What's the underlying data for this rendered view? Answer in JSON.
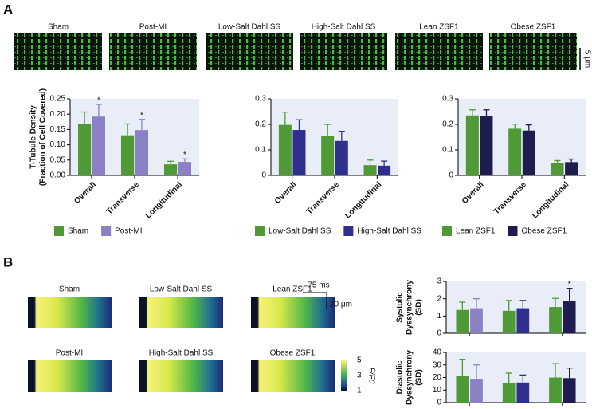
{
  "panel_labels": [
    "A",
    "B"
  ],
  "micrographs": [
    "Sham",
    "Post-MI",
    "Low-Salt Dahl SS",
    "High-Salt Dahl SS",
    "Lean ZSF1",
    "Obese ZSF1"
  ],
  "linescans": [
    "Sham",
    "Low-Salt Dahl SS",
    "Lean ZSF1",
    "Post-MI",
    "High-Salt Dahl SS",
    "Obese ZSF1"
  ],
  "scale_bars": {
    "micrograph": "5 μm",
    "time": "75 ms",
    "space": "20 μm"
  },
  "colorbar": {
    "label": "F/F0",
    "ticks": [
      5,
      3,
      1
    ]
  },
  "chart_data": [
    {
      "type": "bar",
      "ylabel": [
        "T-Tubule Density",
        "(Fraction of Cell Covered)"
      ],
      "categories": [
        "Overall",
        "Transverse",
        "Longitudinal"
      ],
      "series": [
        {
          "name": "Sham",
          "color": "#4f9a37",
          "values": [
            0.167,
            0.131,
            0.036
          ],
          "errors": [
            0.04,
            0.037,
            0.01
          ],
          "marks": [
            null,
            null,
            null
          ]
        },
        {
          "name": "Post-MI",
          "color": "#8b80c6",
          "values": [
            0.192,
            0.148,
            0.044
          ],
          "errors": [
            0.04,
            0.035,
            0.01
          ],
          "marks": [
            "*",
            "*",
            "*"
          ]
        }
      ],
      "ylim": [
        0,
        0.25
      ],
      "yticks": [
        {
          "value": 0,
          "label": "0.00"
        },
        {
          "value": 0.05,
          "label": "0.05"
        },
        {
          "value": 0.1,
          "label": "0.10"
        },
        {
          "value": 0.15,
          "label": "0.15"
        },
        {
          "value": 0.2,
          "label": "0.20"
        },
        {
          "value": 0.25,
          "label": "0.25"
        }
      ]
    },
    {
      "type": "bar",
      "categories": [
        "Overall",
        "Transverse",
        "Longitudinal"
      ],
      "series": [
        {
          "name": "Low-Salt Dahl SS",
          "color": "#4f9a37",
          "values": [
            0.198,
            0.155,
            0.04
          ],
          "errors": [
            0.05,
            0.045,
            0.02
          ]
        },
        {
          "name": "High-Salt Dahl SS",
          "color": "#2e2f8f",
          "values": [
            0.178,
            0.135,
            0.038
          ],
          "errors": [
            0.04,
            0.038,
            0.018
          ]
        }
      ],
      "ylim": [
        0,
        0.3
      ],
      "yticks": [
        0,
        0.1,
        0.2,
        0.3
      ]
    },
    {
      "type": "bar",
      "categories": [
        "Overall",
        "Transverse",
        "Longitudinal"
      ],
      "series": [
        {
          "name": "Lean ZSF1",
          "color": "#4f9a37",
          "values": [
            0.235,
            0.183,
            0.05
          ],
          "errors": [
            0.022,
            0.018,
            0.008
          ]
        },
        {
          "name": "Obese ZSF1",
          "color": "#1f1c50",
          "values": [
            0.232,
            0.176,
            0.052
          ],
          "errors": [
            0.025,
            0.022,
            0.012
          ]
        }
      ],
      "ylim": [
        0,
        0.3
      ],
      "yticks": [
        0,
        0.1,
        0.2,
        0.3
      ]
    },
    {
      "type": "pairs",
      "ylabel": [
        "Systolic",
        "Dyssynchrony",
        "(SD)"
      ],
      "values": [
        1.35,
        1.45,
        1.3,
        1.45,
        1.52,
        1.85
      ],
      "errors": [
        0.45,
        0.55,
        0.6,
        0.45,
        0.5,
        0.75
      ],
      "colors": [
        "#4f9a37",
        "#8b80c6",
        "#4f9a37",
        "#2e2f8f",
        "#4f9a37",
        "#1f1c50"
      ],
      "marks": [
        null,
        null,
        null,
        null,
        null,
        "*"
      ],
      "ylim": [
        0,
        3
      ],
      "yticks": [
        0,
        1,
        2,
        3
      ]
    },
    {
      "type": "pairs",
      "ylabel": [
        "Diastolic",
        "Dyssynchrony",
        "(SD)"
      ],
      "values": [
        21.5,
        19,
        15.5,
        16,
        20,
        19.5
      ],
      "errors": [
        13,
        11,
        8,
        6,
        11,
        8
      ],
      "colors": [
        "#4f9a37",
        "#8b80c6",
        "#4f9a37",
        "#2e2f8f",
        "#4f9a37",
        "#1f1c50"
      ],
      "ylim": [
        0,
        40
      ],
      "yticks": [
        0,
        10,
        20,
        30,
        40
      ]
    }
  ]
}
